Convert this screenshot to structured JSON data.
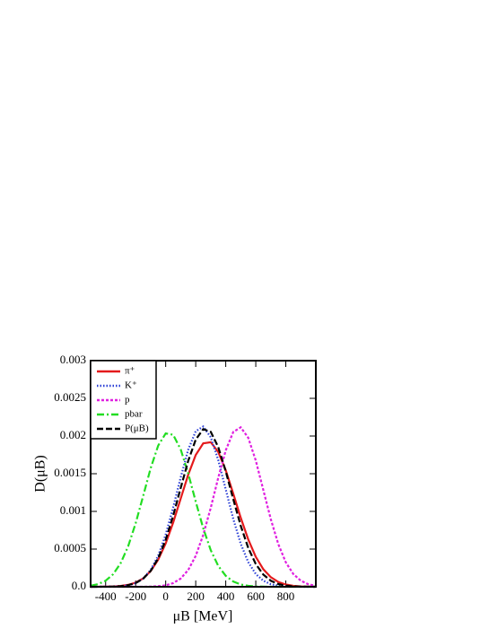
{
  "chart_data": {
    "type": "line",
    "x_label": "μB [MeV]",
    "y_label": "D(μB)",
    "x": [
      -500,
      -450,
      -400,
      -350,
      -300,
      -250,
      -200,
      -150,
      -100,
      -50,
      0,
      50,
      100,
      150,
      200,
      250,
      300,
      350,
      400,
      450,
      500,
      550,
      600,
      650,
      700,
      750,
      800,
      850,
      900,
      950,
      1000
    ],
    "series": [
      {
        "name": "π⁺",
        "color": "#e41a1c",
        "dash": "",
        "values": [
          0,
          5e-07,
          1.5e-06,
          4.2e-06,
          1.1e-05,
          2.5e-05,
          5.5e-05,
          0.000111,
          0.000208,
          0.000359,
          0.000575,
          0.000853,
          0.00117,
          0.001487,
          0.001748,
          0.001903,
          0.001918,
          0.001789,
          0.001546,
          0.001236,
          0.000915,
          0.000627,
          0.000397,
          0.000233,
          0.000127,
          6.4e-05,
          3e-05,
          1.3e-05,
          5e-06,
          2e-06,
          1e-06
        ]
      },
      {
        "name": "K⁺",
        "color": "#2b3fd6",
        "dash": "1.5 2",
        "values": [
          0,
          2e-07,
          7e-07,
          2.4e-06,
          7.2e-06,
          1.96e-05,
          4.86e-05,
          0.000109,
          0.000223,
          0.000412,
          0.000692,
          0.001052,
          0.001452,
          0.001819,
          0.002064,
          0.002126,
          0.001985,
          0.001682,
          0.001292,
          0.0009,
          0.000569,
          0.000326,
          0.000169,
          8e-05,
          3.4e-05,
          1.3e-05,
          5e-06,
          1.5e-06,
          4e-07,
          0,
          0
        ]
      },
      {
        "name": "p",
        "color": "#e020e0",
        "dash": "3 2",
        "values": [
          0,
          0,
          0,
          0,
          0,
          0,
          2e-07,
          7e-07,
          2.4e-06,
          7.1e-06,
          1.95e-05,
          4.83e-05,
          0.000109,
          0.000222,
          0.00041,
          0.000688,
          0.001047,
          0.001446,
          0.00181,
          0.002054,
          0.002116,
          0.001976,
          0.001675,
          0.001286,
          0.000897,
          0.000566,
          0.000324,
          0.000169,
          8e-05,
          3.4e-05,
          1.3e-05
        ]
      },
      {
        "name": "pbar",
        "color": "#22dd22",
        "dash": "8 3 2 3",
        "values": [
          1.43e-05,
          3.54e-05,
          8.03e-05,
          0.000166,
          0.000313,
          0.000537,
          0.000843,
          0.001205,
          0.001574,
          0.001873,
          0.002035,
          0.002017,
          0.001822,
          0.001503,
          0.001131,
          0.000776,
          0.000486,
          0.000277,
          0.000145,
          6.9e-05,
          3e-05,
          1.18e-05,
          4.3e-06,
          1.4e-06,
          4e-07,
          0,
          0,
          0,
          0,
          0,
          0
        ]
      },
      {
        "name": "P(μB)",
        "color": "#000000",
        "dash": "7 3",
        "values": [
          0,
          3e-07,
          1e-06,
          3e-06,
          8.4e-06,
          2.13e-05,
          4.98e-05,
          0.000107,
          0.00021,
          0.000377,
          0.000623,
          0.000944,
          0.001311,
          0.001671,
          0.001952,
          0.002092,
          0.002056,
          0.001853,
          0.001532,
          0.001162,
          0.000808,
          0.000515,
          0.000301,
          0.000162,
          8e-05,
          3.59e-05,
          1.48e-05,
          5.6e-06,
          2e-06,
          6e-07,
          2e-07
        ]
      }
    ],
    "xlim": [
      -500,
      1000
    ],
    "xticks": [
      -400,
      -200,
      0,
      200,
      400,
      600,
      800
    ],
    "ylim": [
      0,
      0.003
    ],
    "yticks": [
      {
        "value": 0,
        "label": "0.0"
      },
      0.0005,
      0.001,
      0.0015,
      0.002,
      0.0025,
      0.003
    ],
    "legend": "upper-left"
  }
}
